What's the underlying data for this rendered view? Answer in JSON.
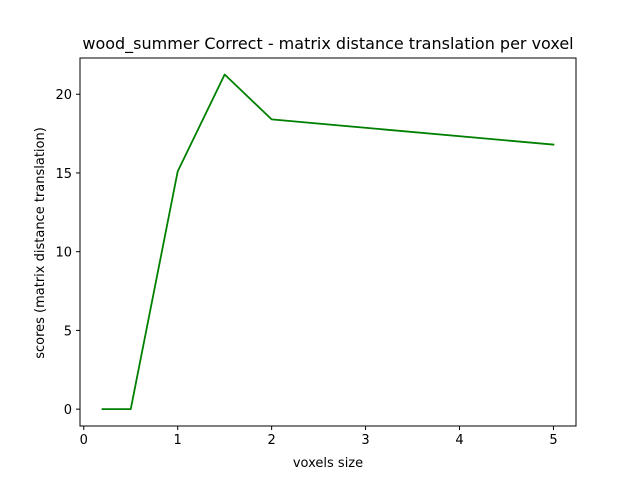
{
  "chart_data": {
    "type": "line",
    "title": "wood_summer Correct - matrix distance translation per voxel",
    "xlabel": "voxels size",
    "ylabel": "scores (matrix distance translation)",
    "xlim": [
      -0.04,
      5.24
    ],
    "ylim": [
      -1.07,
      22.3
    ],
    "xticks": [
      0,
      1,
      2,
      3,
      4,
      5
    ],
    "xtick_labels": [
      "0",
      "1",
      "2",
      "3",
      "4",
      "5"
    ],
    "yticks": [
      0,
      5,
      10,
      15,
      20
    ],
    "ytick_labels": [
      "0",
      "5",
      "10",
      "15",
      "20"
    ],
    "grid": false,
    "series": [
      {
        "name": "wood_summer",
        "color": "#008000",
        "x": [
          0.2,
          0.5,
          1.0,
          1.5,
          2.0,
          5.0
        ],
        "values": [
          0.0,
          0.0,
          15.1,
          21.25,
          18.4,
          16.8
        ]
      }
    ]
  }
}
